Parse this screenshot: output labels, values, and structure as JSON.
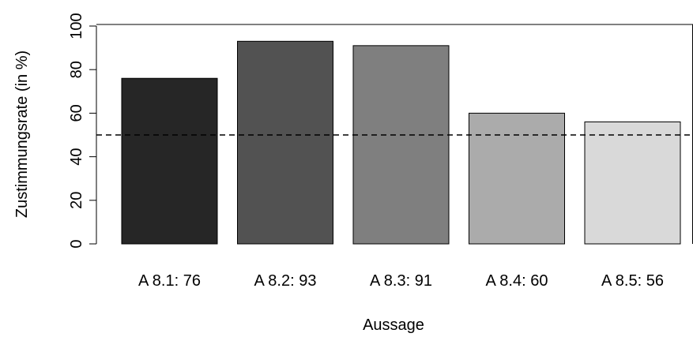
{
  "chart_data": {
    "type": "bar",
    "categories": [
      "A 8.1: 76",
      "A 8.2: 93",
      "A 8.3: 91",
      "A 8.4: 60",
      "A 8.5: 56"
    ],
    "values": [
      76,
      93,
      91,
      60,
      56
    ],
    "bar_colors": [
      "#262626",
      "#525252",
      "#7f7f7f",
      "#ababab",
      "#d9d9d9"
    ],
    "xlabel": "Aussage",
    "ylabel": "Zustimmungsrate (in %)",
    "ylim": [
      0,
      100
    ],
    "yticks": [
      0,
      20,
      40,
      60,
      80,
      100
    ],
    "reference_line": {
      "y": 50,
      "style": "dashed"
    },
    "grid": false,
    "legend": "none"
  }
}
